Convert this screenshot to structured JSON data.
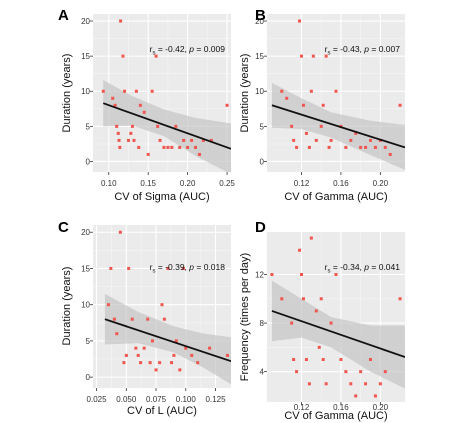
{
  "chart_data": [
    {
      "panel": "A",
      "type": "scatter",
      "xlabel": "CV of Sigma (AUC)",
      "ylabel": "Duration (years)",
      "xlim": [
        0.08,
        0.255
      ],
      "ylim": [
        -1.5,
        21
      ],
      "xticks": [
        0.1,
        0.15,
        0.2,
        0.25
      ],
      "xtick_labels": [
        "0.10",
        "0.15",
        "0.20",
        "0.25"
      ],
      "yticks": [
        0,
        5,
        10,
        15,
        20
      ],
      "ytick_labels": [
        "0",
        "5",
        "10",
        "15",
        "20"
      ],
      "stat_prefix": "r",
      "stat_sub": "s",
      "stat_r": " = -0.42, ",
      "stat_p_label": "p",
      "stat_p": " = 0.009",
      "fit": {
        "x0": 0.093,
        "y0": 8.3,
        "x1": 0.255,
        "y1": 1.8
      },
      "band": {
        "upper": [
          [
            0.093,
            11.6
          ],
          [
            0.13,
            9.3
          ],
          [
            0.17,
            7.4
          ],
          [
            0.21,
            6.2
          ],
          [
            0.255,
            5.4
          ]
        ],
        "lower": [
          [
            0.093,
            5.0
          ],
          [
            0.13,
            5.1
          ],
          [
            0.17,
            3.6
          ],
          [
            0.21,
            0.8
          ],
          [
            0.255,
            -1.8
          ]
        ]
      },
      "points": [
        [
          0.093,
          10
        ],
        [
          0.105,
          9
        ],
        [
          0.108,
          8
        ],
        [
          0.11,
          5
        ],
        [
          0.112,
          4
        ],
        [
          0.113,
          3
        ],
        [
          0.114,
          2
        ],
        [
          0.115,
          20
        ],
        [
          0.118,
          15
        ],
        [
          0.12,
          10
        ],
        [
          0.125,
          3
        ],
        [
          0.128,
          4
        ],
        [
          0.13,
          5
        ],
        [
          0.132,
          3
        ],
        [
          0.135,
          10
        ],
        [
          0.138,
          2
        ],
        [
          0.14,
          8
        ],
        [
          0.145,
          7
        ],
        [
          0.15,
          1
        ],
        [
          0.155,
          10
        ],
        [
          0.16,
          15
        ],
        [
          0.162,
          5
        ],
        [
          0.165,
          3
        ],
        [
          0.17,
          2
        ],
        [
          0.175,
          2
        ],
        [
          0.18,
          2
        ],
        [
          0.185,
          5
        ],
        [
          0.19,
          2
        ],
        [
          0.195,
          3
        ],
        [
          0.2,
          2
        ],
        [
          0.205,
          3
        ],
        [
          0.21,
          2
        ],
        [
          0.215,
          1
        ],
        [
          0.22,
          3
        ],
        [
          0.23,
          3
        ],
        [
          0.25,
          8
        ]
      ]
    },
    {
      "panel": "B",
      "type": "scatter",
      "xlabel": "CV of Gamma (AUC)",
      "ylabel": "Duration (years)",
      "xlim": [
        0.085,
        0.225
      ],
      "ylim": [
        -1.5,
        21
      ],
      "xticks": [
        0.12,
        0.16,
        0.2
      ],
      "xtick_labels": [
        "0.12",
        "0.16",
        "0.20"
      ],
      "yticks": [
        0,
        5,
        10,
        15,
        20
      ],
      "ytick_labels": [
        "0",
        "5",
        "10",
        "15",
        "20"
      ],
      "stat_prefix": "r",
      "stat_sub": "s",
      "stat_r": " = -0.43, ",
      "stat_p_label": "p",
      "stat_p": " = 0.007",
      "fit": {
        "x0": 0.09,
        "y0": 8.0,
        "x1": 0.225,
        "y1": 2.0
      },
      "band": {
        "upper": [
          [
            0.09,
            11.2
          ],
          [
            0.12,
            9.0
          ],
          [
            0.15,
            7.0
          ],
          [
            0.19,
            5.8
          ],
          [
            0.225,
            5.2
          ]
        ],
        "lower": [
          [
            0.09,
            4.8
          ],
          [
            0.12,
            4.6
          ],
          [
            0.15,
            3.4
          ],
          [
            0.19,
            0.9
          ],
          [
            0.225,
            -1.2
          ]
        ]
      },
      "points": [
        [
          0.1,
          10
        ],
        [
          0.105,
          9
        ],
        [
          0.11,
          5
        ],
        [
          0.112,
          3
        ],
        [
          0.115,
          2
        ],
        [
          0.118,
          20
        ],
        [
          0.12,
          15
        ],
        [
          0.122,
          8
        ],
        [
          0.125,
          4
        ],
        [
          0.128,
          2
        ],
        [
          0.13,
          10
        ],
        [
          0.132,
          15
        ],
        [
          0.135,
          3
        ],
        [
          0.14,
          5
        ],
        [
          0.142,
          8
        ],
        [
          0.145,
          15
        ],
        [
          0.148,
          2
        ],
        [
          0.15,
          3
        ],
        [
          0.155,
          10
        ],
        [
          0.16,
          5
        ],
        [
          0.165,
          2
        ],
        [
          0.17,
          3
        ],
        [
          0.175,
          4
        ],
        [
          0.18,
          2
        ],
        [
          0.185,
          2
        ],
        [
          0.19,
          3
        ],
        [
          0.195,
          2
        ],
        [
          0.2,
          3
        ],
        [
          0.205,
          2
        ],
        [
          0.21,
          1
        ],
        [
          0.22,
          8
        ]
      ]
    },
    {
      "panel": "C",
      "type": "scatter",
      "xlabel": "CV of L (AUC)",
      "ylabel": "Duration (years)",
      "xlim": [
        0.022,
        0.138
      ],
      "ylim": [
        -1.5,
        21
      ],
      "xticks": [
        0.025,
        0.05,
        0.075,
        0.1,
        0.125
      ],
      "xtick_labels": [
        "0.025",
        "0.050",
        "0.075",
        "0.100",
        "0.125"
      ],
      "yticks": [
        0,
        5,
        10,
        15,
        20
      ],
      "ytick_labels": [
        "0",
        "5",
        "10",
        "15",
        "20"
      ],
      "stat_prefix": "r",
      "stat_sub": "s",
      "stat_r": " = -0.39, ",
      "stat_p_label": "p",
      "stat_p": " = 0.018",
      "fit": {
        "x0": 0.032,
        "y0": 8.0,
        "x1": 0.138,
        "y1": 2.2
      },
      "band": {
        "upper": [
          [
            0.032,
            11.5
          ],
          [
            0.06,
            9.0
          ],
          [
            0.09,
            7.0
          ],
          [
            0.115,
            6.0
          ],
          [
            0.138,
            5.5
          ]
        ],
        "lower": [
          [
            0.032,
            4.5
          ],
          [
            0.06,
            4.7
          ],
          [
            0.09,
            3.4
          ],
          [
            0.115,
            1.3
          ],
          [
            0.138,
            -1.0
          ]
        ]
      },
      "points": [
        [
          0.035,
          10
        ],
        [
          0.037,
          15
        ],
        [
          0.04,
          8
        ],
        [
          0.042,
          6
        ],
        [
          0.045,
          20
        ],
        [
          0.048,
          2
        ],
        [
          0.05,
          3
        ],
        [
          0.052,
          15
        ],
        [
          0.055,
          8
        ],
        [
          0.058,
          4
        ],
        [
          0.06,
          3
        ],
        [
          0.062,
          2
        ],
        [
          0.065,
          4
        ],
        [
          0.068,
          8
        ],
        [
          0.07,
          2
        ],
        [
          0.072,
          5
        ],
        [
          0.075,
          1
        ],
        [
          0.078,
          2
        ],
        [
          0.08,
          10
        ],
        [
          0.082,
          8
        ],
        [
          0.085,
          15
        ],
        [
          0.088,
          2
        ],
        [
          0.09,
          3
        ],
        [
          0.092,
          5
        ],
        [
          0.095,
          1
        ],
        [
          0.098,
          15
        ],
        [
          0.1,
          4
        ],
        [
          0.105,
          3
        ],
        [
          0.11,
          2
        ],
        [
          0.12,
          4
        ],
        [
          0.135,
          3
        ]
      ]
    },
    {
      "panel": "D",
      "type": "scatter",
      "xlabel": "CV of Gamma (AUC)",
      "ylabel": "Frequency (times per day)",
      "xlim": [
        0.085,
        0.225
      ],
      "ylim": [
        1.5,
        15.5
      ],
      "xticks": [
        0.12,
        0.16,
        0.2
      ],
      "xtick_labels": [
        "0.12",
        "0.16",
        "0.20"
      ],
      "yticks": [
        4,
        8,
        12
      ],
      "ytick_labels": [
        "4",
        "8",
        "12"
      ],
      "stat_prefix": "r",
      "stat_sub": "s",
      "stat_r": " = -0.34, ",
      "stat_p_label": "p",
      "stat_p": " = 0.041",
      "fit": {
        "x0": 0.09,
        "y0": 9.0,
        "x1": 0.225,
        "y1": 5.2
      },
      "band": {
        "upper": [
          [
            0.09,
            11.5
          ],
          [
            0.12,
            10.0
          ],
          [
            0.15,
            8.5
          ],
          [
            0.19,
            7.8
          ],
          [
            0.225,
            7.8
          ]
        ],
        "lower": [
          [
            0.09,
            6.5
          ],
          [
            0.12,
            6.8
          ],
          [
            0.15,
            6.0
          ],
          [
            0.19,
            4.0
          ],
          [
            0.225,
            2.6
          ]
        ]
      },
      "points": [
        [
          0.09,
          12
        ],
        [
          0.1,
          10
        ],
        [
          0.11,
          8
        ],
        [
          0.112,
          5
        ],
        [
          0.115,
          4
        ],
        [
          0.118,
          14
        ],
        [
          0.12,
          12
        ],
        [
          0.122,
          10
        ],
        [
          0.125,
          5
        ],
        [
          0.128,
          3
        ],
        [
          0.13,
          15
        ],
        [
          0.135,
          9
        ],
        [
          0.138,
          6
        ],
        [
          0.14,
          10
        ],
        [
          0.142,
          5
        ],
        [
          0.145,
          3
        ],
        [
          0.15,
          8
        ],
        [
          0.155,
          12
        ],
        [
          0.16,
          5
        ],
        [
          0.165,
          4
        ],
        [
          0.17,
          3
        ],
        [
          0.175,
          2
        ],
        [
          0.18,
          4
        ],
        [
          0.185,
          3
        ],
        [
          0.19,
          5
        ],
        [
          0.195,
          2
        ],
        [
          0.2,
          3
        ],
        [
          0.205,
          4
        ],
        [
          0.22,
          10
        ]
      ]
    }
  ]
}
